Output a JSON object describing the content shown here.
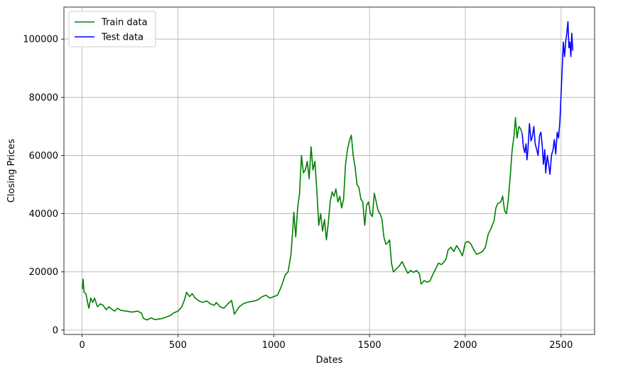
{
  "chart_data": {
    "type": "line",
    "title": "",
    "xlabel": "Dates",
    "ylabel": "Closing Prices",
    "xlim": [
      -95,
      2675
    ],
    "ylim": [
      -1500,
      111000
    ],
    "xticks": [
      0,
      500,
      1000,
      1500,
      2000,
      2500
    ],
    "yticks": [
      0,
      20000,
      40000,
      60000,
      80000,
      100000
    ],
    "grid": true,
    "legend_position": "top-left",
    "series": [
      {
        "name": "Train data",
        "color": "#008000",
        "points": [
          [
            0,
            14000
          ],
          [
            5,
            17500
          ],
          [
            10,
            13000
          ],
          [
            20,
            12500
          ],
          [
            30,
            9000
          ],
          [
            35,
            7500
          ],
          [
            45,
            11000
          ],
          [
            55,
            9500
          ],
          [
            65,
            11000
          ],
          [
            80,
            8000
          ],
          [
            95,
            9000
          ],
          [
            110,
            8500
          ],
          [
            125,
            7000
          ],
          [
            140,
            8000
          ],
          [
            155,
            7200
          ],
          [
            170,
            6500
          ],
          [
            185,
            7500
          ],
          [
            200,
            6800
          ],
          [
            230,
            6500
          ],
          [
            260,
            6200
          ],
          [
            290,
            6500
          ],
          [
            310,
            5800
          ],
          [
            320,
            4000
          ],
          [
            340,
            3500
          ],
          [
            360,
            4200
          ],
          [
            380,
            3600
          ],
          [
            400,
            3800
          ],
          [
            420,
            4000
          ],
          [
            440,
            4500
          ],
          [
            460,
            5000
          ],
          [
            480,
            6000
          ],
          [
            500,
            6500
          ],
          [
            520,
            8000
          ],
          [
            535,
            10500
          ],
          [
            545,
            13000
          ],
          [
            560,
            11500
          ],
          [
            575,
            12500
          ],
          [
            590,
            11000
          ],
          [
            610,
            10000
          ],
          [
            630,
            9500
          ],
          [
            650,
            10000
          ],
          [
            670,
            9000
          ],
          [
            690,
            8500
          ],
          [
            700,
            9500
          ],
          [
            720,
            8000
          ],
          [
            740,
            7500
          ],
          [
            760,
            9000
          ],
          [
            780,
            10200
          ],
          [
            795,
            5500
          ],
          [
            805,
            6500
          ],
          [
            820,
            8000
          ],
          [
            840,
            9000
          ],
          [
            860,
            9500
          ],
          [
            880,
            9800
          ],
          [
            900,
            10000
          ],
          [
            920,
            10500
          ],
          [
            940,
            11500
          ],
          [
            960,
            12000
          ],
          [
            980,
            11000
          ],
          [
            1000,
            11500
          ],
          [
            1020,
            12000
          ],
          [
            1040,
            15000
          ],
          [
            1060,
            19000
          ],
          [
            1075,
            20000
          ],
          [
            1090,
            26000
          ],
          [
            1100,
            35000
          ],
          [
            1105,
            40500
          ],
          [
            1115,
            32000
          ],
          [
            1125,
            42000
          ],
          [
            1135,
            47000
          ],
          [
            1145,
            60000
          ],
          [
            1155,
            54000
          ],
          [
            1165,
            55000
          ],
          [
            1175,
            58000
          ],
          [
            1185,
            52000
          ],
          [
            1195,
            63000
          ],
          [
            1205,
            55000
          ],
          [
            1215,
            58000
          ],
          [
            1225,
            48000
          ],
          [
            1235,
            36000
          ],
          [
            1245,
            40000
          ],
          [
            1255,
            34000
          ],
          [
            1265,
            38000
          ],
          [
            1275,
            31000
          ],
          [
            1285,
            37000
          ],
          [
            1295,
            44000
          ],
          [
            1305,
            47500
          ],
          [
            1315,
            46000
          ],
          [
            1325,
            48500
          ],
          [
            1335,
            44000
          ],
          [
            1345,
            46000
          ],
          [
            1355,
            42000
          ],
          [
            1365,
            45000
          ],
          [
            1375,
            57000
          ],
          [
            1385,
            62000
          ],
          [
            1395,
            65000
          ],
          [
            1405,
            67000
          ],
          [
            1415,
            60000
          ],
          [
            1425,
            56000
          ],
          [
            1435,
            50000
          ],
          [
            1445,
            49000
          ],
          [
            1455,
            45000
          ],
          [
            1465,
            44000
          ],
          [
            1475,
            36000
          ],
          [
            1485,
            43000
          ],
          [
            1495,
            44000
          ],
          [
            1505,
            40000
          ],
          [
            1515,
            39000
          ],
          [
            1525,
            47000
          ],
          [
            1535,
            44000
          ],
          [
            1545,
            41000
          ],
          [
            1555,
            40000
          ],
          [
            1565,
            38000
          ],
          [
            1575,
            32000
          ],
          [
            1585,
            29500
          ],
          [
            1595,
            30000
          ],
          [
            1605,
            31000
          ],
          [
            1615,
            23000
          ],
          [
            1625,
            20000
          ],
          [
            1640,
            21000
          ],
          [
            1655,
            22000
          ],
          [
            1670,
            23500
          ],
          [
            1685,
            21500
          ],
          [
            1700,
            19500
          ],
          [
            1715,
            20500
          ],
          [
            1730,
            19800
          ],
          [
            1745,
            20500
          ],
          [
            1760,
            19500
          ],
          [
            1770,
            15800
          ],
          [
            1785,
            17000
          ],
          [
            1800,
            16500
          ],
          [
            1815,
            16800
          ],
          [
            1830,
            19000
          ],
          [
            1845,
            21000
          ],
          [
            1860,
            23000
          ],
          [
            1875,
            22500
          ],
          [
            1890,
            23500
          ],
          [
            1900,
            24500
          ],
          [
            1910,
            27500
          ],
          [
            1925,
            28500
          ],
          [
            1940,
            27000
          ],
          [
            1955,
            29000
          ],
          [
            1970,
            27500
          ],
          [
            1985,
            25500
          ],
          [
            2000,
            30000
          ],
          [
            2015,
            30500
          ],
          [
            2030,
            29500
          ],
          [
            2045,
            27500
          ],
          [
            2060,
            26000
          ],
          [
            2075,
            26500
          ],
          [
            2090,
            27000
          ],
          [
            2105,
            28500
          ],
          [
            2120,
            33000
          ],
          [
            2135,
            35000
          ],
          [
            2150,
            37500
          ],
          [
            2160,
            42000
          ],
          [
            2170,
            43500
          ],
          [
            2185,
            44000
          ],
          [
            2195,
            46000
          ],
          [
            2205,
            41000
          ],
          [
            2215,
            40000
          ],
          [
            2225,
            45000
          ],
          [
            2235,
            53000
          ],
          [
            2245,
            62000
          ],
          [
            2255,
            67000
          ],
          [
            2262,
            73000
          ],
          [
            2270,
            66000
          ],
          [
            2280,
            70000
          ],
          [
            2290,
            69000
          ],
          [
            2297,
            67500
          ]
        ]
      },
      {
        "name": "Test data",
        "color": "#0000ff",
        "points": [
          [
            2297,
            67500
          ],
          [
            2303,
            63000
          ],
          [
            2310,
            61000
          ],
          [
            2317,
            64000
          ],
          [
            2322,
            58500
          ],
          [
            2327,
            62000
          ],
          [
            2335,
            71000
          ],
          [
            2343,
            65000
          ],
          [
            2350,
            66500
          ],
          [
            2358,
            70000
          ],
          [
            2365,
            64000
          ],
          [
            2373,
            62000
          ],
          [
            2380,
            60000
          ],
          [
            2388,
            67000
          ],
          [
            2395,
            68000
          ],
          [
            2402,
            63000
          ],
          [
            2408,
            57000
          ],
          [
            2415,
            62000
          ],
          [
            2420,
            54000
          ],
          [
            2428,
            60000
          ],
          [
            2435,
            57000
          ],
          [
            2442,
            53500
          ],
          [
            2450,
            60000
          ],
          [
            2458,
            62000
          ],
          [
            2465,
            65500
          ],
          [
            2472,
            60500
          ],
          [
            2480,
            68000
          ],
          [
            2487,
            66000
          ],
          [
            2494,
            72000
          ],
          [
            2500,
            81000
          ],
          [
            2506,
            90000
          ],
          [
            2512,
            99000
          ],
          [
            2518,
            94000
          ],
          [
            2524,
            99000
          ],
          [
            2530,
            102000
          ],
          [
            2536,
            106000
          ],
          [
            2541,
            97000
          ],
          [
            2546,
            99000
          ],
          [
            2551,
            94000
          ],
          [
            2556,
            102000
          ],
          [
            2561,
            96000
          ]
        ]
      }
    ]
  }
}
